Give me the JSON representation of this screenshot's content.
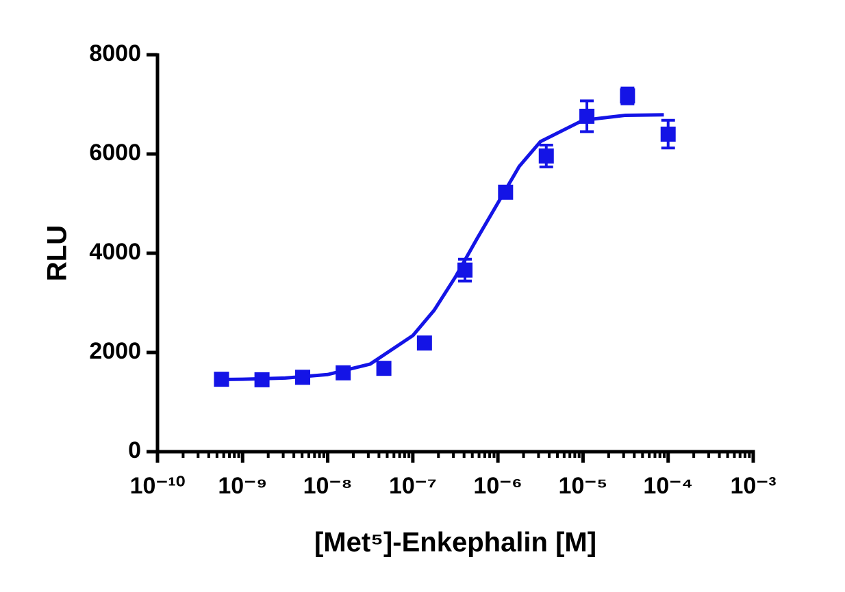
{
  "chart_data": {
    "type": "scatter",
    "y_label": "RLU",
    "x_label": "[Met⁵]-Enkephalin [M]",
    "x": [
      5.65e-10,
      1.69e-09,
      5.08e-09,
      1.52e-08,
      4.57e-08,
      1.37e-07,
      4.1e-07,
      1.23e-06,
      3.7e-06,
      1.11e-05,
      3.33e-05,
      0.0001
    ],
    "values": [
      1460,
      1450,
      1500,
      1590,
      1680,
      2190,
      3660,
      5230,
      5960,
      6760,
      7170,
      6400
    ],
    "errors": [
      70,
      70,
      70,
      80,
      80,
      100,
      220,
      110,
      220,
      310,
      160,
      280
    ],
    "color": "#1414e6",
    "marker": "square",
    "fit": {
      "x": [
        5.65e-10,
        1e-09,
        3.16e-09,
        1e-08,
        3.16e-08,
        1e-07,
        1.78e-07,
        3.16e-07,
        5.62e-07,
        1e-06,
        1.78e-06,
        3.16e-06,
        1e-05,
        3.16e-05,
        8.9e-05
      ],
      "values": [
        1456,
        1461,
        1484,
        1555,
        1767,
        2340,
        2850,
        3520,
        4279,
        5014,
        5750,
        6250,
        6680,
        6780,
        6790
      ]
    },
    "x_log": true,
    "x_minor_ticks": true,
    "xlim": [
      1e-10,
      0.001
    ],
    "xticks": [
      {
        "value": 1e-10,
        "label": "10⁻¹⁰"
      },
      {
        "value": 1e-09,
        "label": "10⁻⁹"
      },
      {
        "value": 1e-08,
        "label": "10⁻⁸"
      },
      {
        "value": 1e-07,
        "label": "10⁻⁷"
      },
      {
        "value": 1e-06,
        "label": "10⁻⁶"
      },
      {
        "value": 1e-05,
        "label": "10⁻⁵"
      },
      {
        "value": 0.0001,
        "label": "10⁻⁴"
      },
      {
        "value": 0.001,
        "label": "10⁻³"
      }
    ],
    "ylim": [
      0,
      8000
    ],
    "yticks": [
      0,
      2000,
      4000,
      6000,
      8000
    ]
  }
}
